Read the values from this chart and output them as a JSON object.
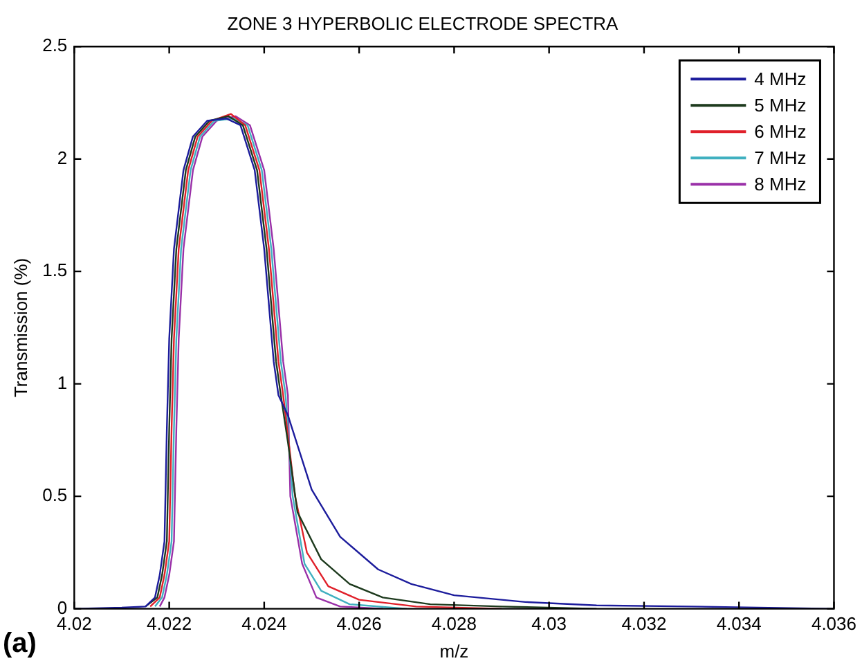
{
  "chart_data": {
    "type": "line",
    "title": "ZONE 3 HYPERBOLIC ELECTRODE SPECTRA",
    "xlabel": "m/z",
    "ylabel": "Transmission (%)",
    "annotations": [
      "(a)"
    ],
    "xlim": [
      4.02,
      4.036
    ],
    "xticks": [
      {
        "value": 4.02,
        "label": "4.02"
      },
      {
        "value": 4.022,
        "label": "4.022"
      },
      {
        "value": 4.024,
        "label": "4.024"
      },
      {
        "value": 4.026,
        "label": "4.026"
      },
      {
        "value": 4.028,
        "label": "4.028"
      },
      {
        "value": 4.03,
        "label": "4.03"
      },
      {
        "value": 4.032,
        "label": "4.032"
      },
      {
        "value": 4.034,
        "label": "4.034"
      },
      {
        "value": 4.036,
        "label": "4.036"
      }
    ],
    "ylim": [
      0,
      2.5
    ],
    "yticks": [
      0,
      0.5,
      1,
      1.5,
      2,
      2.5
    ],
    "grid": false,
    "legend": "top right",
    "marker": "none",
    "line_style": "solid",
    "series": [
      {
        "name": "4 MHz",
        "color": "#1c1c9c",
        "x": [
          4.02,
          4.021,
          4.0215,
          4.0217,
          4.0218,
          4.0219,
          4.02195,
          4.022,
          4.0221,
          4.0223,
          4.0225,
          4.0228,
          4.0232,
          4.0235,
          4.0238,
          4.024,
          4.0242,
          4.0243,
          4.0245,
          4.025,
          4.0256,
          4.0264,
          4.0271,
          4.028,
          4.0295,
          4.031,
          4.033,
          4.036
        ],
        "values": [
          0,
          0.005,
          0.01,
          0.05,
          0.15,
          0.3,
          0.8,
          1.2,
          1.6,
          1.95,
          2.1,
          2.17,
          2.18,
          2.15,
          1.95,
          1.6,
          1.1,
          0.95,
          0.86,
          0.53,
          0.32,
          0.175,
          0.11,
          0.06,
          0.03,
          0.015,
          0.01,
          0
        ]
      },
      {
        "name": "5 MHz",
        "color": "#1d3a1d",
        "x": [
          4.0215,
          4.02175,
          4.02185,
          4.02195,
          4.022,
          4.02205,
          4.02215,
          4.02235,
          4.02255,
          4.02285,
          4.02325,
          4.02355,
          4.02385,
          4.02405,
          4.02425,
          4.02435,
          4.0245,
          4.0247,
          4.0252,
          4.0258,
          4.0265,
          4.0275,
          4.029,
          4.031
        ],
        "values": [
          0.01,
          0.05,
          0.15,
          0.3,
          0.8,
          1.2,
          1.6,
          1.95,
          2.1,
          2.17,
          2.19,
          2.15,
          1.95,
          1.6,
          1.1,
          0.95,
          0.74,
          0.43,
          0.22,
          0.11,
          0.05,
          0.02,
          0.01,
          0
        ]
      },
      {
        "name": "6 MHz",
        "color": "#e0202a",
        "x": [
          4.0216,
          4.0218,
          4.0219,
          4.022,
          4.02205,
          4.0221,
          4.0222,
          4.0224,
          4.0226,
          4.0229,
          4.0233,
          4.0236,
          4.0239,
          4.0241,
          4.0243,
          4.0244,
          4.02465,
          4.0249,
          4.02535,
          4.026,
          4.0272,
          4.029
        ],
        "values": [
          0.01,
          0.05,
          0.15,
          0.3,
          0.8,
          1.2,
          1.6,
          1.95,
          2.1,
          2.17,
          2.2,
          2.15,
          1.95,
          1.6,
          1.1,
          0.95,
          0.5,
          0.25,
          0.1,
          0.04,
          0.01,
          0
        ]
      },
      {
        "name": "7 MHz",
        "color": "#40b0c0",
        "x": [
          4.0217,
          4.02185,
          4.02195,
          4.02205,
          4.0221,
          4.02215,
          4.02225,
          4.02245,
          4.02265,
          4.02295,
          4.02335,
          4.02365,
          4.02395,
          4.02415,
          4.02435,
          4.02445,
          4.0246,
          4.02485,
          4.0252,
          4.0258,
          4.027
        ],
        "values": [
          0.01,
          0.05,
          0.15,
          0.3,
          0.8,
          1.2,
          1.6,
          1.95,
          2.1,
          2.17,
          2.18,
          2.15,
          1.95,
          1.6,
          1.1,
          0.95,
          0.5,
          0.2,
          0.08,
          0.02,
          0
        ]
      },
      {
        "name": "8 MHz",
        "color": "#9a30a8",
        "x": [
          4.0218,
          4.0219,
          4.022,
          4.0221,
          4.02215,
          4.0222,
          4.0223,
          4.0225,
          4.0227,
          4.023,
          4.0234,
          4.0237,
          4.024,
          4.0242,
          4.0244,
          4.0245,
          4.02455,
          4.0248,
          4.0251,
          4.0256,
          4.0265
        ],
        "values": [
          0.01,
          0.05,
          0.15,
          0.3,
          0.8,
          1.2,
          1.6,
          1.95,
          2.1,
          2.17,
          2.19,
          2.15,
          1.95,
          1.6,
          1.1,
          0.95,
          0.5,
          0.2,
          0.05,
          0.01,
          0
        ]
      }
    ]
  }
}
